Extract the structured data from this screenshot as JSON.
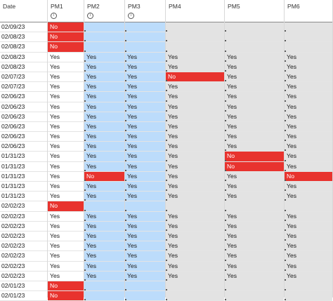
{
  "columns": [
    {
      "label": "Date",
      "kind": "date",
      "info": false
    },
    {
      "label": "PM1",
      "kind": "plain",
      "info": true
    },
    {
      "label": "PM2",
      "kind": "blue",
      "info": true
    },
    {
      "label": "PM3",
      "kind": "blue",
      "info": true
    },
    {
      "label": "PM4",
      "kind": "grey",
      "info": false
    },
    {
      "label": "PM5",
      "kind": "grey",
      "info": false
    },
    {
      "label": "PM6",
      "kind": "grey",
      "info": false
    }
  ],
  "icons": {
    "info": "info-icon"
  },
  "colors": {
    "no_cell": "#e8332e",
    "pm2_pm3_fill": "#bcdcfb",
    "pm4_pm6_fill": "#e3e3e3"
  },
  "rows": [
    [
      "02/09/23",
      "No",
      "",
      "",
      "",
      "",
      ""
    ],
    [
      "02/08/23",
      "No",
      "",
      "",
      "",
      "",
      ""
    ],
    [
      "02/08/23",
      "No",
      "",
      "",
      "",
      "",
      ""
    ],
    [
      "02/08/23",
      "Yes",
      "Yes",
      "Yes",
      "Yes",
      "Yes",
      "Yes"
    ],
    [
      "02/08/23",
      "Yes",
      "Yes",
      "Yes",
      "Yes",
      "Yes",
      "Yes"
    ],
    [
      "02/07/23",
      "Yes",
      "Yes",
      "Yes",
      "No",
      "Yes",
      "Yes"
    ],
    [
      "02/07/23",
      "Yes",
      "Yes",
      "Yes",
      "Yes",
      "Yes",
      "Yes"
    ],
    [
      "02/06/23",
      "Yes",
      "Yes",
      "Yes",
      "Yes",
      "Yes",
      "Yes"
    ],
    [
      "02/06/23",
      "Yes",
      "Yes",
      "Yes",
      "Yes",
      "Yes",
      "Yes"
    ],
    [
      "02/06/23",
      "Yes",
      "Yes",
      "Yes",
      "Yes",
      "Yes",
      "Yes"
    ],
    [
      "02/06/23",
      "Yes",
      "Yes",
      "Yes",
      "Yes",
      "Yes",
      "Yes"
    ],
    [
      "02/06/23",
      "Yes",
      "Yes",
      "Yes",
      "Yes",
      "Yes",
      "Yes"
    ],
    [
      "02/06/23",
      "Yes",
      "Yes",
      "Yes",
      "Yes",
      "Yes",
      "Yes"
    ],
    [
      "01/31/23",
      "Yes",
      "Yes",
      "Yes",
      "Yes",
      "No",
      "Yes"
    ],
    [
      "01/31/23",
      "Yes",
      "Yes",
      "Yes",
      "Yes",
      "No",
      "Yes"
    ],
    [
      "01/31/23",
      "Yes",
      "No",
      "Yes",
      "Yes",
      "Yes",
      "No"
    ],
    [
      "01/31/23",
      "Yes",
      "Yes",
      "Yes",
      "Yes",
      "Yes",
      "Yes"
    ],
    [
      "01/31/23",
      "Yes",
      "Yes",
      "Yes",
      "Yes",
      "Yes",
      "Yes"
    ],
    [
      "02/02/23",
      "No",
      "",
      "",
      "",
      "",
      ""
    ],
    [
      "02/02/23",
      "Yes",
      "Yes",
      "Yes",
      "Yes",
      "Yes",
      "Yes"
    ],
    [
      "02/02/23",
      "Yes",
      "Yes",
      "Yes",
      "Yes",
      "Yes",
      "Yes"
    ],
    [
      "02/02/23",
      "Yes",
      "Yes",
      "Yes",
      "Yes",
      "Yes",
      "Yes"
    ],
    [
      "02/02/23",
      "Yes",
      "Yes",
      "Yes",
      "Yes",
      "Yes",
      "Yes"
    ],
    [
      "02/02/23",
      "Yes",
      "Yes",
      "Yes",
      "Yes",
      "Yes",
      "Yes"
    ],
    [
      "02/02/23",
      "Yes",
      "Yes",
      "Yes",
      "Yes",
      "Yes",
      "Yes"
    ],
    [
      "02/02/23",
      "Yes",
      "Yes",
      "Yes",
      "Yes",
      "Yes",
      "Yes"
    ],
    [
      "02/01/23",
      "No",
      "",
      "",
      "",
      "",
      ""
    ],
    [
      "02/01/23",
      "No",
      "",
      "",
      "",
      "",
      ""
    ]
  ]
}
